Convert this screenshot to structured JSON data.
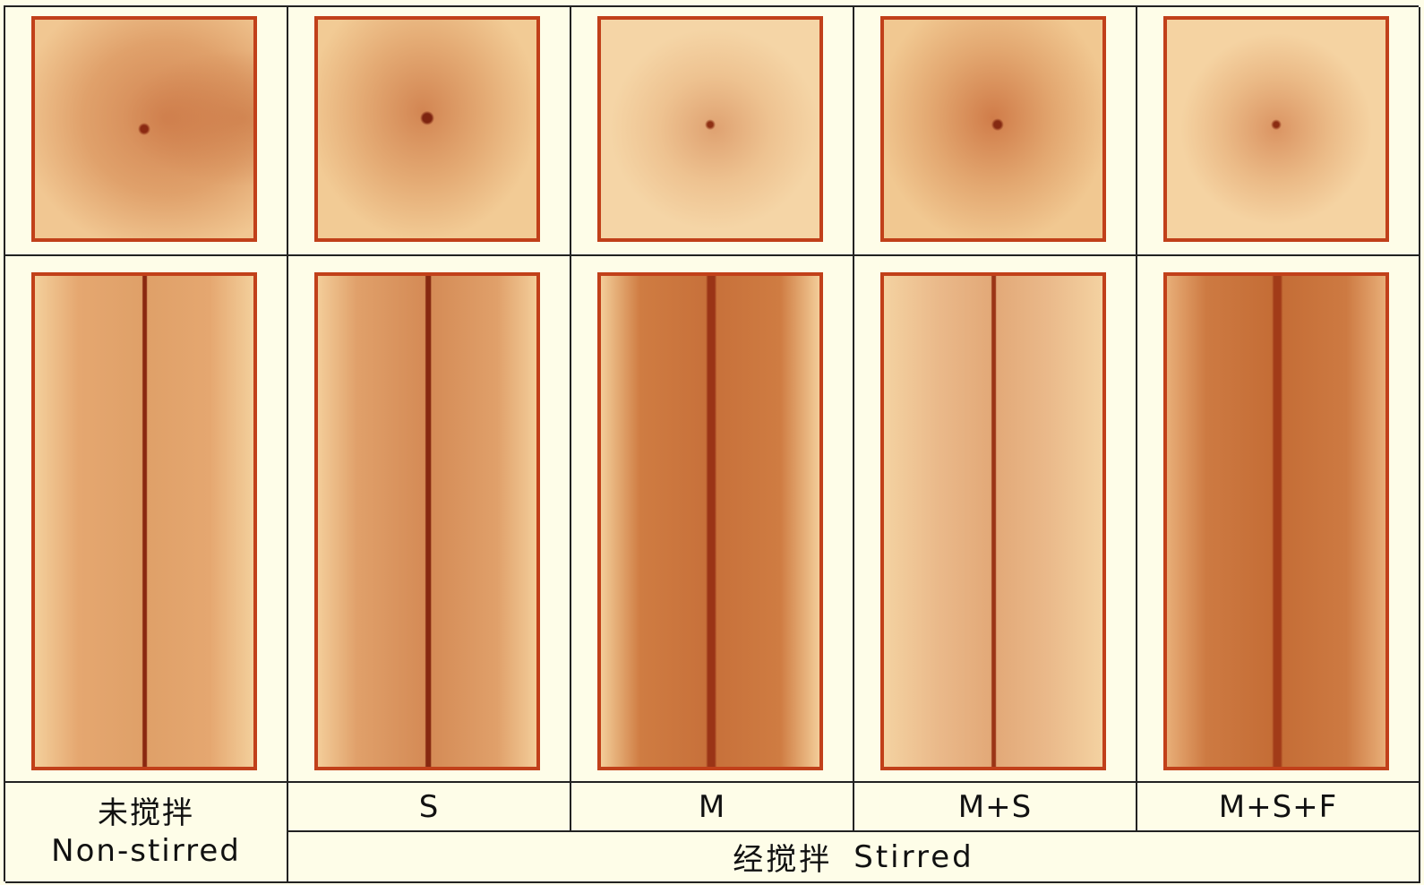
{
  "columns": [
    {
      "id": "non-stirred",
      "label": ""
    },
    {
      "id": "s",
      "label": "S"
    },
    {
      "id": "m",
      "label": "M"
    },
    {
      "id": "m-s",
      "label": "M+S"
    },
    {
      "id": "m-s-f",
      "label": "M+S+F"
    }
  ],
  "nonstirred": {
    "cn": "未搅拌",
    "en": "Non-stirred"
  },
  "stirred": {
    "cn": "经搅拌",
    "en": "Stirred"
  },
  "colors": {
    "frame": "#c1401a",
    "background": "#fefde8",
    "grid_line": "#222222"
  }
}
